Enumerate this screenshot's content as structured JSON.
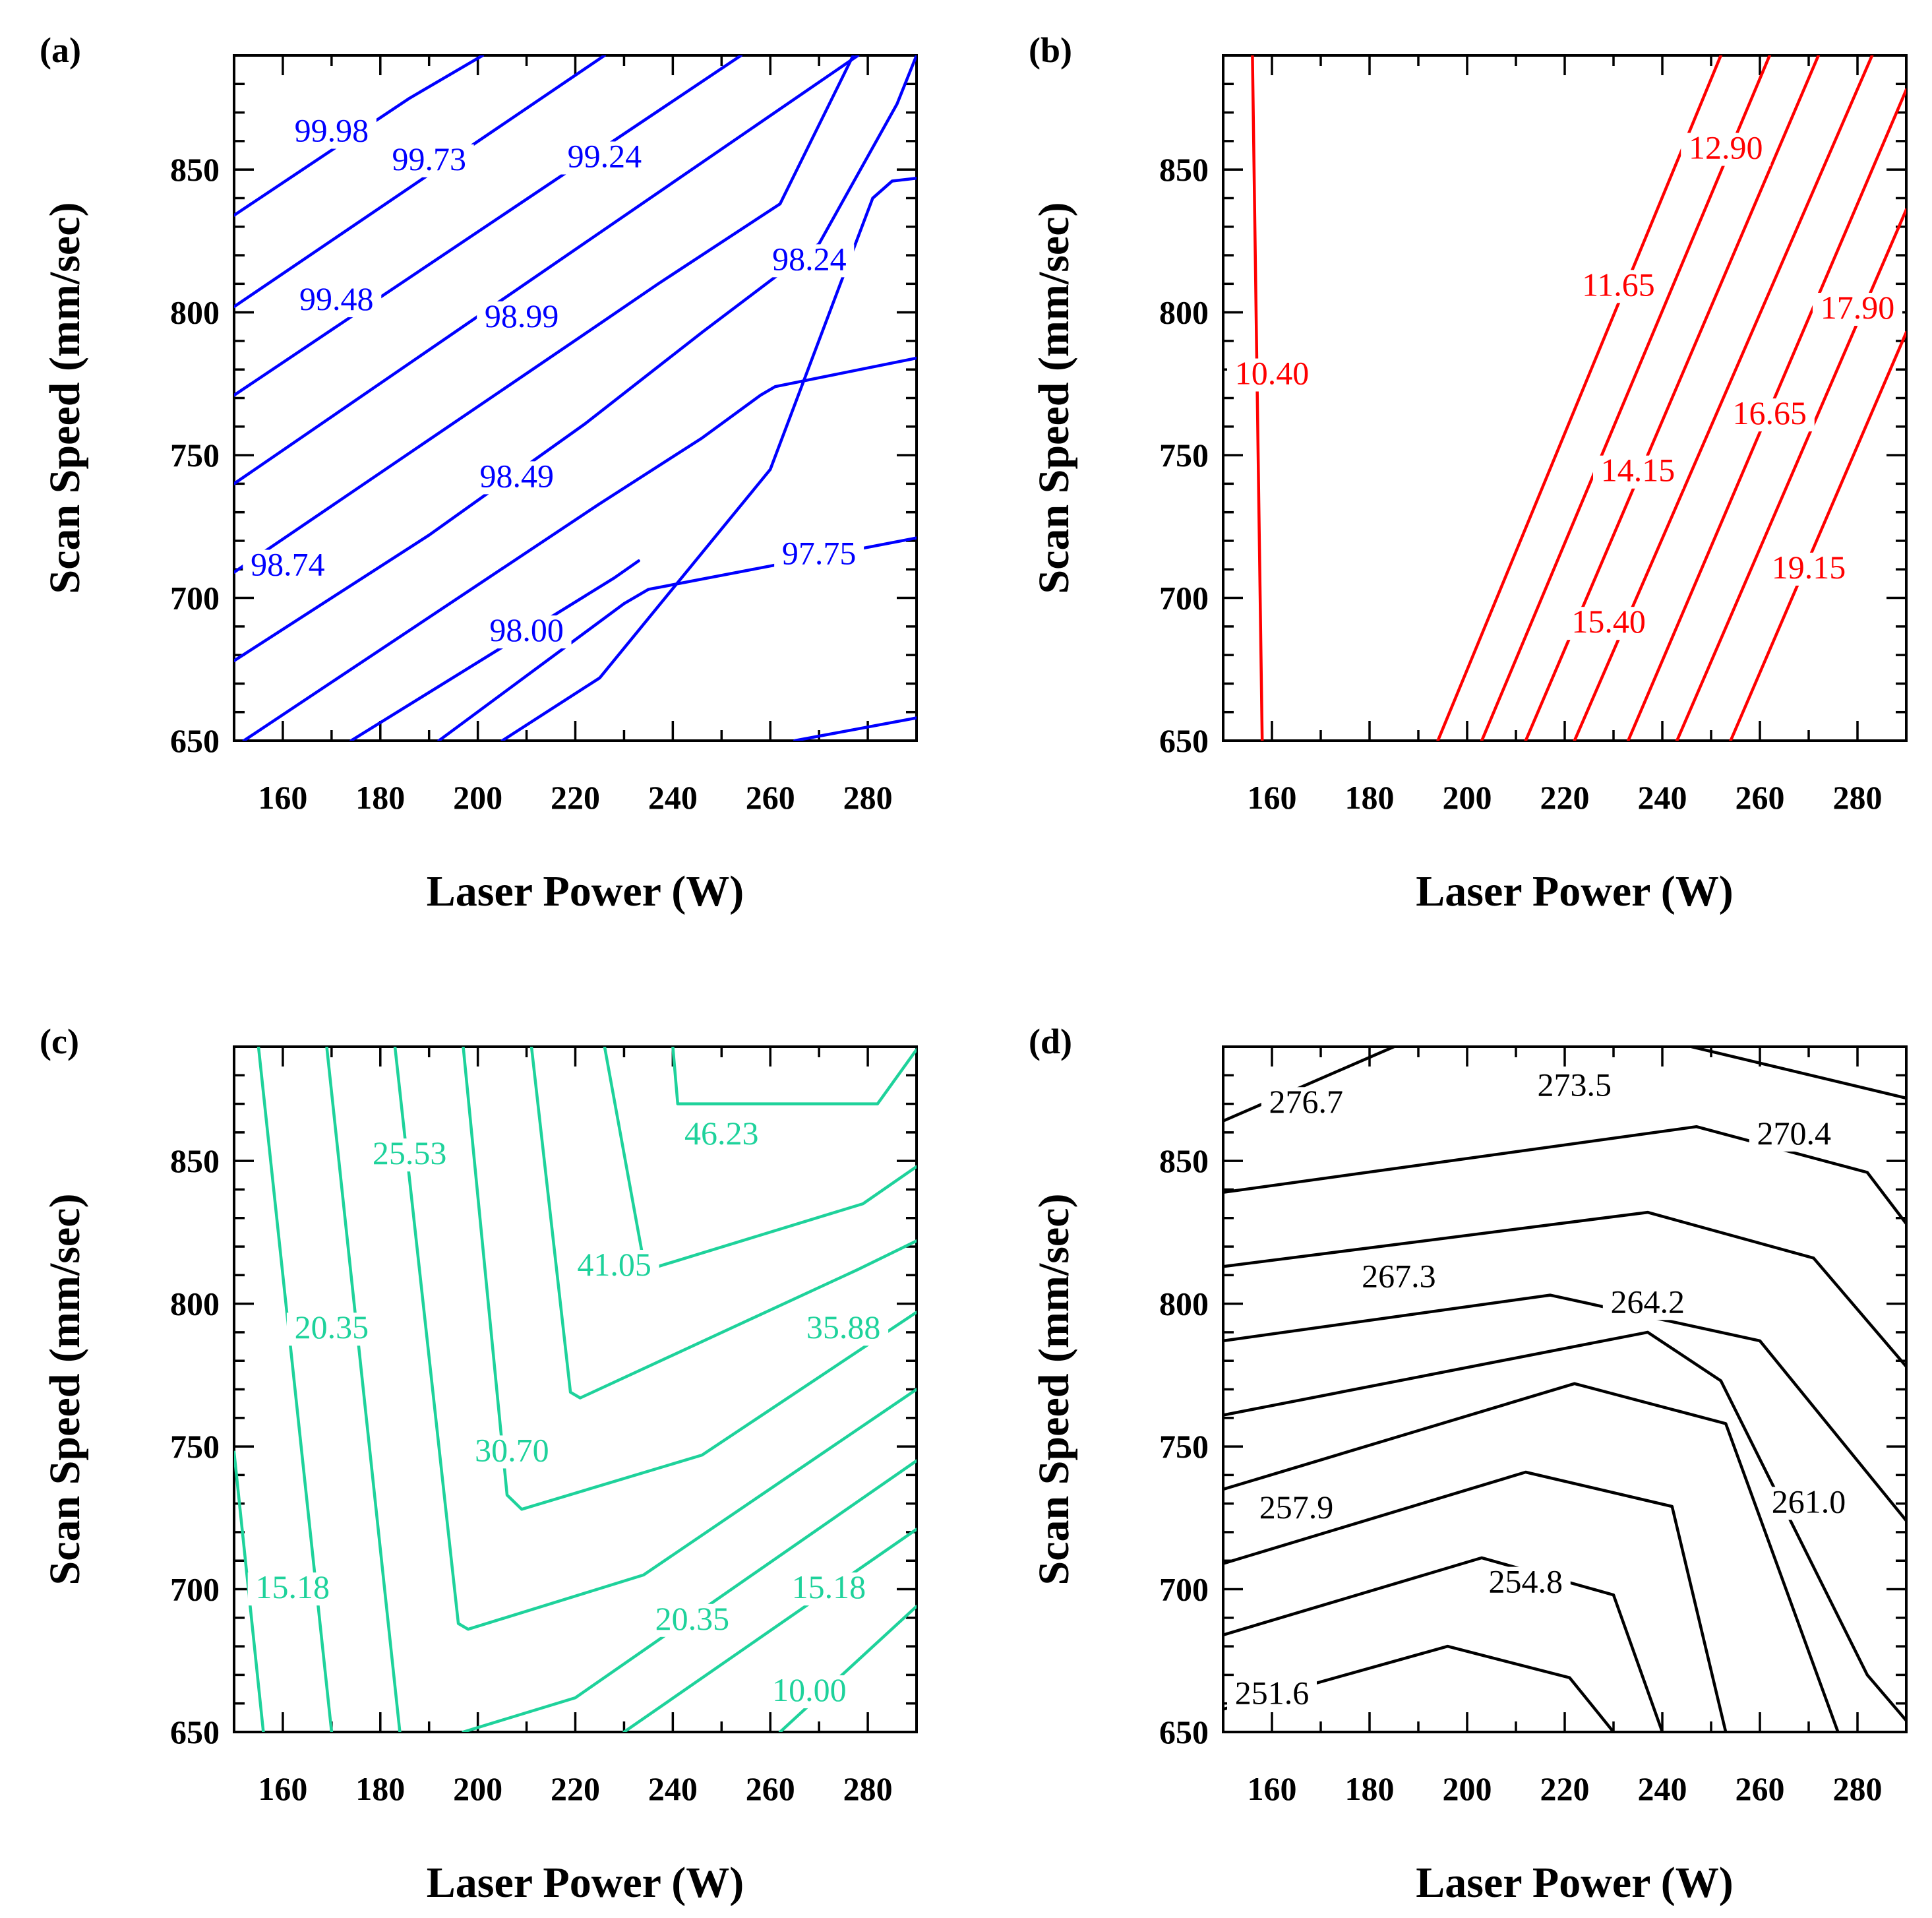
{
  "chart_data": [
    {
      "id": "a",
      "type": "contour",
      "panel_label": "(a)",
      "xlabel": "Laser Power (W)",
      "ylabel": "Scan Speed (mm/sec)",
      "xlim": [
        150,
        290
      ],
      "ylim": [
        650,
        890
      ],
      "xticks": [
        "160",
        "180",
        "200",
        "220",
        "240",
        "260",
        "280"
      ],
      "yticks": [
        "650",
        "700",
        "750",
        "800",
        "850"
      ],
      "color": "#0000ff",
      "lines": [
        {
          "points": [
            [
              150,
              834
            ],
            [
              186,
              875
            ],
            [
              201,
              890
            ]
          ]
        },
        {
          "points": [
            [
              150,
              802
            ],
            [
              226,
              890
            ]
          ]
        },
        {
          "points": [
            [
              150,
              771
            ],
            [
              254,
              890
            ]
          ]
        },
        {
          "points": [
            [
              150,
              740
            ],
            [
              278,
              890
            ]
          ]
        },
        {
          "points": [
            [
              150,
              709
            ],
            [
              225,
              796
            ],
            [
              237,
              810
            ],
            [
              262,
              838
            ],
            [
              275,
              883
            ],
            [
              277,
              890
            ]
          ]
        },
        {
          "points": [
            [
              150,
              678
            ],
            [
              190,
              722
            ],
            [
              222,
              761
            ],
            [
              246,
              793
            ],
            [
              270,
              824
            ],
            [
              286,
              873
            ],
            [
              290,
              890
            ]
          ]
        },
        {
          "points": [
            [
              152,
              650
            ],
            [
              225,
              733
            ],
            [
              246,
              756
            ],
            [
              258,
              771
            ],
            [
              261,
              774
            ],
            [
              290,
              784
            ]
          ]
        },
        {
          "points": [
            [
              174,
              650
            ],
            [
              228,
              707
            ],
            [
              233,
              713
            ]
          ]
        },
        {
          "points": [
            [
              192,
              650
            ],
            [
              230,
              698
            ],
            [
              235,
              703
            ],
            [
              290,
              721
            ]
          ]
        },
        {
          "points": [
            [
              205,
              650
            ],
            [
              225,
              672
            ],
            [
              260,
              745
            ],
            [
              281,
              840
            ],
            [
              285,
              846
            ],
            [
              290,
              847
            ]
          ]
        },
        {
          "points": [
            [
              265,
              650
            ],
            [
              290,
              658
            ]
          ]
        }
      ],
      "labels": [
        {
          "text": "99.98",
          "x": 170,
          "y": 861
        },
        {
          "text": "99.73",
          "x": 190,
          "y": 851
        },
        {
          "text": "99.24",
          "x": 226,
          "y": 852
        },
        {
          "text": "99.48",
          "x": 171,
          "y": 802
        },
        {
          "text": "98.99",
          "x": 209,
          "y": 796
        },
        {
          "text": "98.24",
          "x": 268,
          "y": 816
        },
        {
          "text": "98.49",
          "x": 208,
          "y": 740
        },
        {
          "text": "98.74",
          "x": 161,
          "y": 709
        },
        {
          "text": "97.75",
          "x": 270,
          "y": 713
        },
        {
          "text": "98.00",
          "x": 210,
          "y": 686
        }
      ]
    },
    {
      "id": "b",
      "type": "contour",
      "panel_label": "(b)",
      "xlabel": "Laser Power (W)",
      "ylabel": "Scan Speed (mm/sec)",
      "xlim": [
        150,
        290
      ],
      "ylim": [
        650,
        890
      ],
      "xticks": [
        "160",
        "180",
        "200",
        "220",
        "240",
        "260",
        "280"
      ],
      "yticks": [
        "650",
        "700",
        "750",
        "800",
        "850"
      ],
      "color": "#ff0000",
      "lines": [
        {
          "points": [
            [
              156,
              890
            ],
            [
              157,
              770
            ],
            [
              158,
              650
            ]
          ]
        },
        {
          "points": [
            [
              194,
              650
            ],
            [
              252,
              890
            ]
          ]
        },
        {
          "points": [
            [
              203,
              650
            ],
            [
              262,
              890
            ]
          ]
        },
        {
          "points": [
            [
              212,
              650
            ],
            [
              272,
              890
            ]
          ]
        },
        {
          "points": [
            [
              222,
              650
            ],
            [
              283,
              890
            ]
          ]
        },
        {
          "points": [
            [
              233,
              650
            ],
            [
              290,
              878
            ]
          ]
        },
        {
          "points": [
            [
              243,
              650
            ],
            [
              290,
              836
            ]
          ]
        },
        {
          "points": [
            [
              254,
              650
            ],
            [
              290,
              793
            ]
          ]
        }
      ],
      "labels": [
        {
          "text": "10.40",
          "x": 160,
          "y": 776
        },
        {
          "text": "11.65",
          "x": 231,
          "y": 807
        },
        {
          "text": "12.90",
          "x": 253,
          "y": 855
        },
        {
          "text": "14.15",
          "x": 235,
          "y": 742
        },
        {
          "text": "16.65",
          "x": 262,
          "y": 762
        },
        {
          "text": "17.90",
          "x": 280,
          "y": 799
        },
        {
          "text": "15.40",
          "x": 229,
          "y": 689
        },
        {
          "text": "19.15",
          "x": 270,
          "y": 708
        }
      ]
    },
    {
      "id": "c",
      "type": "contour",
      "panel_label": "(c)",
      "xlabel": "Laser Power (W)",
      "ylabel": "Scan Speed (mm/sec)",
      "xlim": [
        150,
        290
      ],
      "ylim": [
        650,
        890
      ],
      "xticks": [
        "160",
        "180",
        "200",
        "220",
        "240",
        "260",
        "280"
      ],
      "yticks": [
        "650",
        "700",
        "750",
        "800",
        "850"
      ],
      "color": "#1ed29b",
      "lines": [
        {
          "points": [
            [
              150,
              748
            ],
            [
              156,
              650
            ]
          ]
        },
        {
          "points": [
            [
              155,
              890
            ],
            [
              170,
              650
            ]
          ]
        },
        {
          "points": [
            [
              169,
              890
            ],
            [
              184,
              650
            ]
          ]
        },
        {
          "points": [
            [
              183,
              890
            ],
            [
              196,
              688
            ],
            [
              198,
              686
            ],
            [
              234,
              705
            ],
            [
              290,
              770
            ]
          ]
        },
        {
          "points": [
            [
              197,
              890
            ],
            [
              206,
              733
            ],
            [
              209,
              728
            ],
            [
              246,
              747
            ],
            [
              290,
              797
            ]
          ]
        },
        {
          "points": [
            [
              211,
              890
            ],
            [
              219,
              769
            ],
            [
              221,
              767
            ],
            [
              278,
              812
            ],
            [
              290,
              822
            ]
          ]
        },
        {
          "points": [
            [
              226,
              890
            ],
            [
              234,
              815
            ],
            [
              235,
              812
            ],
            [
              279,
              835
            ],
            [
              290,
              848
            ]
          ]
        },
        {
          "points": [
            [
              240,
              890
            ],
            [
              241,
              870
            ],
            [
              282,
              870
            ],
            [
              290,
              889
            ]
          ]
        },
        {
          "points": [
            [
              197,
              650
            ],
            [
              220,
              662
            ],
            [
              290,
              745
            ]
          ]
        },
        {
          "points": [
            [
              230,
              650
            ],
            [
              290,
              721
            ]
          ]
        },
        {
          "points": [
            [
              262,
              650
            ],
            [
              290,
              694
            ]
          ]
        }
      ],
      "labels": [
        {
          "text": "25.53",
          "x": 186,
          "y": 850
        },
        {
          "text": "46.23",
          "x": 250,
          "y": 857
        },
        {
          "text": "41.05",
          "x": 228,
          "y": 811
        },
        {
          "text": "20.35",
          "x": 170,
          "y": 789
        },
        {
          "text": "35.88",
          "x": 275,
          "y": 789
        },
        {
          "text": "30.70",
          "x": 207,
          "y": 746
        },
        {
          "text": "15.18",
          "x": 162,
          "y": 698
        },
        {
          "text": "15.18",
          "x": 272,
          "y": 698
        },
        {
          "text": "20.35",
          "x": 244,
          "y": 687
        },
        {
          "text": "10.00",
          "x": 268,
          "y": 662
        }
      ]
    },
    {
      "id": "d",
      "type": "contour",
      "panel_label": "(d)",
      "xlabel": "Laser Power (W)",
      "ylabel": "Scan Speed (mm/sec)",
      "xlim": [
        150,
        290
      ],
      "ylim": [
        650,
        890
      ],
      "xticks": [
        "160",
        "180",
        "200",
        "220",
        "240",
        "260",
        "280"
      ],
      "yticks": [
        "650",
        "700",
        "750",
        "800",
        "850"
      ],
      "color": "#000000",
      "lines": [
        {
          "points": [
            [
              150,
              864
            ],
            [
              185,
              890
            ]
          ]
        },
        {
          "points": [
            [
              150,
              839
            ],
            [
              247,
              862
            ],
            [
              282,
              846
            ],
            [
              290,
              828
            ]
          ]
        },
        {
          "points": [
            [
              150,
              813
            ],
            [
              237,
              832
            ],
            [
              271,
              816
            ],
            [
              290,
              778
            ]
          ]
        },
        {
          "points": [
            [
              150,
              787
            ],
            [
              217,
              803
            ],
            [
              260,
              787
            ],
            [
              290,
              724
            ]
          ]
        },
        {
          "points": [
            [
              150,
              761
            ],
            [
              237,
              790
            ],
            [
              252,
              773
            ],
            [
              282,
              670
            ],
            [
              290,
              654
            ]
          ]
        },
        {
          "points": [
            [
              150,
              735
            ],
            [
              222,
              772
            ],
            [
              253,
              758
            ],
            [
              276,
              650
            ]
          ]
        },
        {
          "points": [
            [
              150,
              709
            ],
            [
              212,
              741
            ],
            [
              242,
              729
            ],
            [
              253,
              650
            ]
          ]
        },
        {
          "points": [
            [
              150,
              684
            ],
            [
              203,
              711
            ],
            [
              230,
              698
            ],
            [
              240,
              650
            ]
          ]
        },
        {
          "points": [
            [
              150,
              658
            ],
            [
              196,
              680
            ],
            [
              221,
              669
            ],
            [
              230,
              650
            ]
          ]
        },
        {
          "points": [
            [
              246,
              890
            ],
            [
              290,
              872
            ]
          ]
        }
      ],
      "labels": [
        {
          "text": "276.7",
          "x": 167,
          "y": 868
        },
        {
          "text": "273.5",
          "x": 222,
          "y": 874
        },
        {
          "text": "270.4",
          "x": 267,
          "y": 857
        },
        {
          "text": "267.3",
          "x": 186,
          "y": 807
        },
        {
          "text": "264.2",
          "x": 237,
          "y": 798
        },
        {
          "text": "257.9",
          "x": 165,
          "y": 726
        },
        {
          "text": "261.0",
          "x": 270,
          "y": 728
        },
        {
          "text": "254.8",
          "x": 212,
          "y": 700
        },
        {
          "text": "251.6",
          "x": 160,
          "y": 661
        }
      ]
    }
  ]
}
